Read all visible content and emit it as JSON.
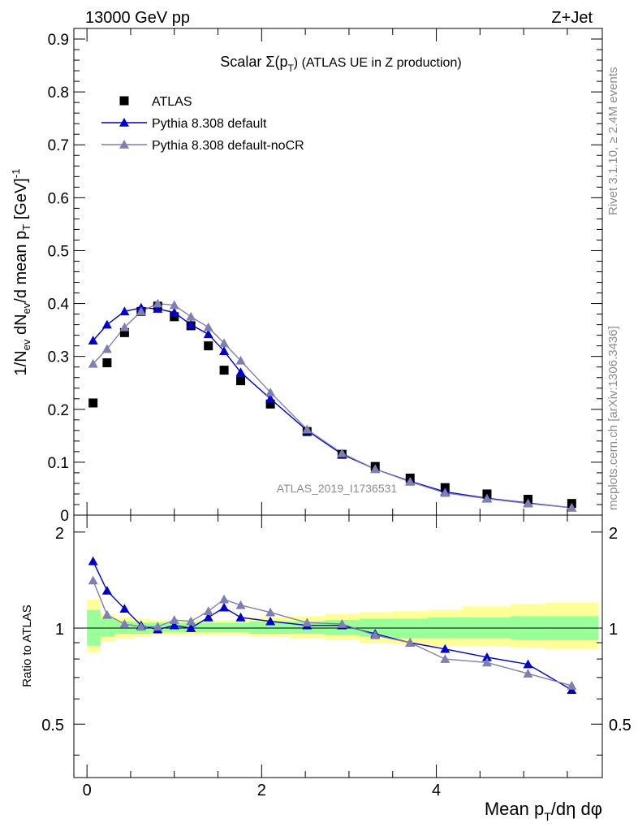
{
  "header": {
    "left": "13000 GeV pp",
    "right": "Z+Jet"
  },
  "side_labels": {
    "rivet": "Rivet 3.1.10, ≥ 2.4M events",
    "mcplots": "mcplots.cern.ch [arXiv:1306.3436]"
  },
  "chart_data": {
    "type": "scatter",
    "title": "Scalar Σ(p_T) (ATLAS UE in Z production)",
    "title_parts": {
      "prefix": "Scalar Σ(p",
      "sub": "T",
      "suffix": ") (ATLAS UE in Z production)"
    },
    "ylabel": "1/N_ev dN_ev/d mean p_T [GeV]^-1",
    "ylabel_parts": {
      "a": "1/N",
      "a_sub": "ev",
      "b": " dN",
      "b_sub": "ev",
      "c": "/d mean p",
      "c_sub": "T",
      "d": " [GeV]",
      "d_sup": "-1"
    },
    "xlabel": "Mean p_T/dη dφ",
    "xlabel_parts": {
      "a": "Mean p",
      "a_sub": "T",
      "b": "/dη dφ"
    },
    "ratio_ylabel": "Ratio to ATLAS",
    "watermark": "ATLAS_2019_I1736531",
    "xlim": [
      -0.15,
      5.9
    ],
    "ylim": [
      0,
      0.92
    ],
    "ratio_ylim": [
      0.34,
      2.26
    ],
    "x_ticks": [
      "0",
      "2",
      "4"
    ],
    "y_ticks": [
      "0",
      "0.1",
      "0.2",
      "0.3",
      "0.4",
      "0.5",
      "0.6",
      "0.7",
      "0.8",
      "0.9"
    ],
    "ratio_ticks": [
      "0.5",
      "1",
      "2"
    ],
    "legend_position": "top-left",
    "x": [
      0.07,
      0.23,
      0.43,
      0.62,
      0.81,
      1.0,
      1.19,
      1.39,
      1.57,
      1.76,
      2.1,
      2.52,
      2.92,
      3.3,
      3.7,
      4.1,
      4.58,
      5.05,
      5.55
    ],
    "series": [
      {
        "name": "ATLAS",
        "marker": "square",
        "color": "#000000",
        "values": [
          0.212,
          0.288,
          0.345,
          0.385,
          0.395,
          0.375,
          0.358,
          0.32,
          0.274,
          0.254,
          0.21,
          0.158,
          0.115,
          0.092,
          0.07,
          0.052,
          0.04,
          0.03,
          0.022
        ]
      },
      {
        "name": "Pythia 8.308 default",
        "marker": "triangle",
        "color": "#0000cc",
        "values": [
          0.33,
          0.36,
          0.385,
          0.392,
          0.39,
          0.383,
          0.36,
          0.342,
          0.31,
          0.27,
          0.22,
          0.16,
          0.115,
          0.087,
          0.064,
          0.044,
          0.032,
          0.023,
          0.014
        ]
      },
      {
        "name": "Pythia 8.308 default-noCR",
        "marker": "triangle",
        "color": "#7f7fb2",
        "values": [
          0.286,
          0.314,
          0.355,
          0.385,
          0.4,
          0.397,
          0.375,
          0.355,
          0.325,
          0.292,
          0.232,
          0.162,
          0.117,
          0.087,
          0.063,
          0.042,
          0.031,
          0.022,
          0.014
        ]
      }
    ],
    "ratio_series": [
      {
        "name": "Pythia 8.308 default",
        "color": "#0000cc",
        "values": [
          1.62,
          1.31,
          1.15,
          1.02,
          0.99,
          1.02,
          1.0,
          1.08,
          1.16,
          1.08,
          1.05,
          1.02,
          1.02,
          0.96,
          0.9,
          0.86,
          0.81,
          0.77,
          0.64
        ]
      },
      {
        "name": "Pythia 8.308 default-noCR",
        "color": "#7f7fb2",
        "values": [
          1.41,
          1.1,
          1.03,
          1.01,
          1.01,
          1.06,
          1.05,
          1.13,
          1.23,
          1.18,
          1.12,
          1.04,
          1.03,
          0.95,
          0.9,
          0.8,
          0.78,
          0.72,
          0.66
        ]
      }
    ],
    "band_edges": [
      0.0,
      0.15,
      0.32,
      0.53,
      0.72,
      0.91,
      1.1,
      1.29,
      1.48,
      1.67,
      1.86,
      2.32,
      2.72,
      3.12,
      3.5,
      3.9,
      4.3,
      4.85,
      5.25,
      5.85
    ],
    "green_band_lo": [
      0.88,
      0.94,
      0.96,
      0.96,
      0.97,
      0.97,
      0.97,
      0.97,
      0.97,
      0.97,
      0.96,
      0.96,
      0.95,
      0.94,
      0.93,
      0.93,
      0.93,
      0.92,
      0.92
    ],
    "green_band_hi": [
      1.14,
      1.07,
      1.05,
      1.04,
      1.04,
      1.04,
      1.04,
      1.04,
      1.04,
      1.04,
      1.05,
      1.05,
      1.06,
      1.07,
      1.07,
      1.08,
      1.08,
      1.09,
      1.09
    ],
    "yellow_band_lo": [
      0.84,
      0.91,
      0.93,
      0.94,
      0.95,
      0.95,
      0.95,
      0.95,
      0.95,
      0.95,
      0.94,
      0.93,
      0.92,
      0.9,
      0.89,
      0.88,
      0.88,
      0.87,
      0.86
    ],
    "yellow_band_hi": [
      1.23,
      1.11,
      1.08,
      1.07,
      1.06,
      1.06,
      1.06,
      1.06,
      1.06,
      1.06,
      1.08,
      1.09,
      1.11,
      1.12,
      1.13,
      1.14,
      1.17,
      1.19,
      1.2
    ]
  }
}
